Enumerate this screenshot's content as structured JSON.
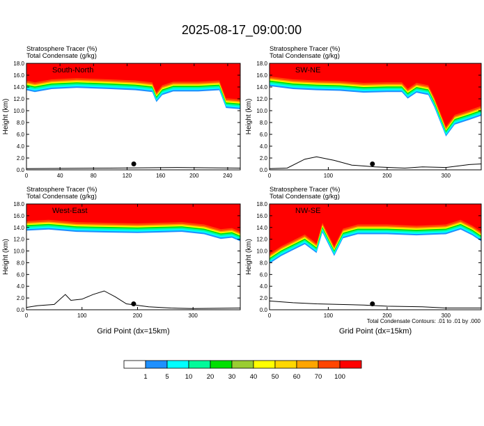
{
  "figure_title": "2025-08-17_09:00:00",
  "contour_note": "Total Condensate Contours: .01 to .01 by .000",
  "colorbar": {
    "levels": [
      "1",
      "5",
      "10",
      "20",
      "30",
      "40",
      "50",
      "60",
      "70",
      "100"
    ],
    "colors": [
      "#ffffff",
      "#1e90ff",
      "#00ffff",
      "#00fa9a",
      "#00e000",
      "#9acd32",
      "#ffff00",
      "#ffd700",
      "#ffa500",
      "#ff4500",
      "#ff0000"
    ]
  },
  "chart_data": [
    {
      "type": "heatmap",
      "panel_label": "South-North",
      "header": [
        "Stratosphere Tracer   (%)",
        "Total Condensate   (g/kg)"
      ],
      "ylabel": "Height (km)",
      "xlabel": "",
      "xlim": [
        0,
        255
      ],
      "ylim": [
        0,
        18
      ],
      "xticks": [
        0,
        40,
        80,
        120,
        160,
        200,
        240
      ],
      "yticks": [
        0,
        2,
        4,
        6,
        8,
        10,
        12,
        14,
        16,
        18
      ],
      "tracer_base_km": [
        [
          0,
          13.8
        ],
        [
          10,
          13.5
        ],
        [
          30,
          14.0
        ],
        [
          60,
          14.2
        ],
        [
          100,
          14.0
        ],
        [
          130,
          13.8
        ],
        [
          150,
          13.5
        ],
        [
          155,
          11.8
        ],
        [
          162,
          13.0
        ],
        [
          175,
          13.6
        ],
        [
          205,
          13.6
        ],
        [
          230,
          13.8
        ],
        [
          238,
          10.8
        ],
        [
          255,
          10.6
        ]
      ],
      "terrain_km": [
        [
          0,
          0.2
        ],
        [
          100,
          0.3
        ],
        [
          180,
          0.4
        ],
        [
          255,
          0.3
        ]
      ],
      "marker": [
        128,
        1.0
      ]
    },
    {
      "type": "heatmap",
      "panel_label": "SW-NE",
      "header": [
        "Stratosphere Tracer   (%)",
        "Total Condensate   (g/kg)"
      ],
      "ylabel": "Height (km)",
      "xlabel": "",
      "xlim": [
        0,
        360
      ],
      "ylim": [
        0,
        18
      ],
      "xticks": [
        0,
        100,
        200,
        300
      ],
      "yticks": [
        0,
        2,
        4,
        6,
        8,
        10,
        12,
        14,
        16,
        18
      ],
      "tracer_base_km": [
        [
          0,
          14.5
        ],
        [
          40,
          14.0
        ],
        [
          80,
          13.8
        ],
        [
          120,
          13.7
        ],
        [
          160,
          13.4
        ],
        [
          200,
          13.5
        ],
        [
          225,
          13.5
        ],
        [
          235,
          12.4
        ],
        [
          250,
          13.4
        ],
        [
          270,
          13.0
        ],
        [
          280,
          11.0
        ],
        [
          290,
          8.5
        ],
        [
          300,
          6.0
        ],
        [
          315,
          8.0
        ],
        [
          340,
          8.8
        ],
        [
          360,
          9.5
        ]
      ],
      "terrain_km": [
        [
          0,
          0.2
        ],
        [
          30,
          0.3
        ],
        [
          60,
          1.8
        ],
        [
          80,
          2.2
        ],
        [
          110,
          1.6
        ],
        [
          140,
          0.8
        ],
        [
          180,
          0.5
        ],
        [
          230,
          0.3
        ],
        [
          260,
          0.5
        ],
        [
          300,
          0.4
        ],
        [
          340,
          0.9
        ],
        [
          360,
          1.0
        ]
      ],
      "marker": [
        175,
        1.0
      ]
    },
    {
      "type": "heatmap",
      "panel_label": "West-East",
      "header": [
        "Stratosphere Tracer   (%)",
        "Total Condensate   (g/kg)"
      ],
      "ylabel": "Height (km)",
      "xlabel": "Grid Point (dx=15km)",
      "xlim": [
        0,
        385
      ],
      "ylim": [
        0,
        18
      ],
      "xticks": [
        0,
        100,
        200,
        300
      ],
      "yticks": [
        0,
        2,
        4,
        6,
        8,
        10,
        12,
        14,
        16,
        18
      ],
      "tracer_base_km": [
        [
          0,
          13.8
        ],
        [
          40,
          14.0
        ],
        [
          90,
          13.6
        ],
        [
          140,
          13.5
        ],
        [
          200,
          13.4
        ],
        [
          240,
          13.5
        ],
        [
          280,
          13.6
        ],
        [
          320,
          13.2
        ],
        [
          350,
          12.4
        ],
        [
          370,
          12.6
        ],
        [
          385,
          12.0
        ]
      ],
      "terrain_km": [
        [
          0,
          0.4
        ],
        [
          20,
          0.7
        ],
        [
          50,
          0.9
        ],
        [
          70,
          2.6
        ],
        [
          80,
          1.6
        ],
        [
          100,
          1.8
        ],
        [
          120,
          2.6
        ],
        [
          140,
          3.2
        ],
        [
          160,
          2.2
        ],
        [
          180,
          1.0
        ],
        [
          220,
          0.5
        ],
        [
          260,
          0.3
        ],
        [
          300,
          0.2
        ],
        [
          385,
          0.3
        ]
      ],
      "marker": [
        193,
        1.0
      ]
    },
    {
      "type": "heatmap",
      "panel_label": "NW-SE",
      "header": [
        "Stratosphere Tracer   (%)",
        "Total Condensate   (g/kg)"
      ],
      "ylabel": "Height (km)",
      "xlabel": "Grid Point (dx=15km)",
      "xlim": [
        0,
        360
      ],
      "ylim": [
        0,
        18
      ],
      "xticks": [
        0,
        100,
        200,
        300
      ],
      "yticks": [
        0,
        2,
        4,
        6,
        8,
        10,
        12,
        14,
        16,
        18
      ],
      "tracer_base_km": [
        [
          0,
          8.2
        ],
        [
          20,
          9.5
        ],
        [
          40,
          10.5
        ],
        [
          60,
          11.5
        ],
        [
          80,
          10.0
        ],
        [
          90,
          13.5
        ],
        [
          100,
          11.5
        ],
        [
          110,
          9.5
        ],
        [
          125,
          12.5
        ],
        [
          150,
          13.2
        ],
        [
          200,
          13.2
        ],
        [
          250,
          13.0
        ],
        [
          300,
          13.2
        ],
        [
          325,
          14.0
        ],
        [
          345,
          13.0
        ],
        [
          360,
          12.0
        ]
      ],
      "terrain_km": [
        [
          0,
          1.5
        ],
        [
          40,
          1.2
        ],
        [
          80,
          1.0
        ],
        [
          120,
          0.9
        ],
        [
          160,
          0.8
        ],
        [
          200,
          0.6
        ],
        [
          260,
          0.5
        ],
        [
          300,
          0.3
        ],
        [
          360,
          0.3
        ]
      ],
      "marker": [
        175,
        1.0
      ]
    }
  ]
}
